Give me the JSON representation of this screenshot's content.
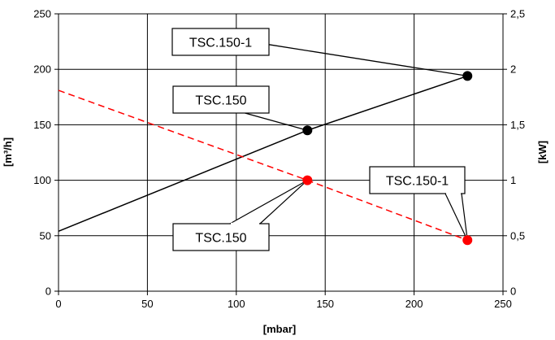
{
  "chart_data": {
    "type": "line",
    "xlabel": "[mbar]",
    "ylabel_left": "[m³/h]",
    "ylabel_right": "[kW]",
    "xlim": [
      0,
      250
    ],
    "ylim_left": [
      0,
      250
    ],
    "ylim_right": [
      0,
      2.5
    ],
    "x_ticks": [
      "0",
      "50",
      "100",
      "150",
      "200",
      "250"
    ],
    "y_left_ticks": [
      "0",
      "50",
      "100",
      "150",
      "200",
      "250"
    ],
    "y_right_ticks": [
      "0",
      "0,5",
      "1",
      "1,5",
      "2",
      "2,5"
    ],
    "grid": true,
    "series": [
      {
        "axis": "left",
        "color": "#000000",
        "style": "solid",
        "x": [
          0,
          140,
          230
        ],
        "y": [
          54,
          145,
          194
        ]
      },
      {
        "axis": "right",
        "color": "#ff0000",
        "style": "dashed",
        "x": [
          0,
          140,
          230
        ],
        "y": [
          1.81,
          1.0,
          0.46
        ]
      }
    ],
    "markers": [
      {
        "axis": "left",
        "x": 140,
        "y": 145,
        "color": "#000000"
      },
      {
        "axis": "left",
        "x": 230,
        "y": 194,
        "color": "#000000"
      },
      {
        "axis": "right",
        "x": 140,
        "y": 1.0,
        "color": "#ff0000"
      },
      {
        "axis": "right",
        "x": 230,
        "y": 0.46,
        "color": "#ff0000"
      }
    ],
    "annotations": [
      {
        "text": "TSC.150-1",
        "marker": 1
      },
      {
        "text": "TSC.150",
        "marker": 0
      },
      {
        "text": "TSC.150-1",
        "marker": 3
      },
      {
        "text": "TSC.150",
        "marker": 2
      }
    ]
  }
}
